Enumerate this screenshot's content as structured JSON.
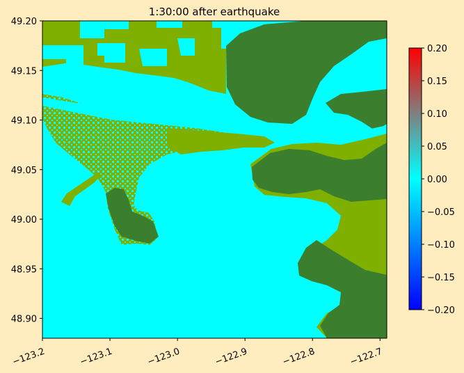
{
  "chart_data": {
    "type": "heatmap",
    "title": "1:30:00 after earthquake",
    "xlabel": "",
    "ylabel": "",
    "xlim": [
      -123.2,
      -122.69
    ],
    "ylim": [
      48.88,
      49.2
    ],
    "x_ticks": [
      -123.2,
      -123.1,
      -123.0,
      -122.9,
      -122.8,
      -122.7
    ],
    "x_tick_labels": [
      "−123.2",
      "−123.1",
      "−123.0",
      "−122.9",
      "−122.8",
      "−122.7"
    ],
    "y_ticks": [
      48.9,
      48.95,
      49.0,
      49.05,
      49.1,
      49.15,
      49.2
    ],
    "y_tick_labels": [
      "48.90",
      "48.95",
      "49.00",
      "49.05",
      "49.10",
      "49.15",
      "49.20"
    ],
    "colorbar": {
      "range": [
        -0.2,
        0.2
      ],
      "ticks": [
        -0.2,
        -0.15,
        -0.1,
        -0.05,
        0.0,
        0.05,
        0.1,
        0.15,
        0.2
      ],
      "tick_labels": [
        "−0.20",
        "−0.15",
        "−0.10",
        "−0.05",
        "0.00",
        "0.05",
        "0.10",
        "0.15",
        "0.20"
      ],
      "colors": [
        "#0000ff",
        "#00ffff",
        "#ff0000"
      ]
    },
    "surface_value_over_water": 0.0,
    "colors": {
      "water": "#00ffff",
      "lowland": "#7fb000",
      "upland": "#3b7f2e",
      "page_background": "#ffecbf"
    },
    "grid": false,
    "legend": "colorbar-right"
  }
}
